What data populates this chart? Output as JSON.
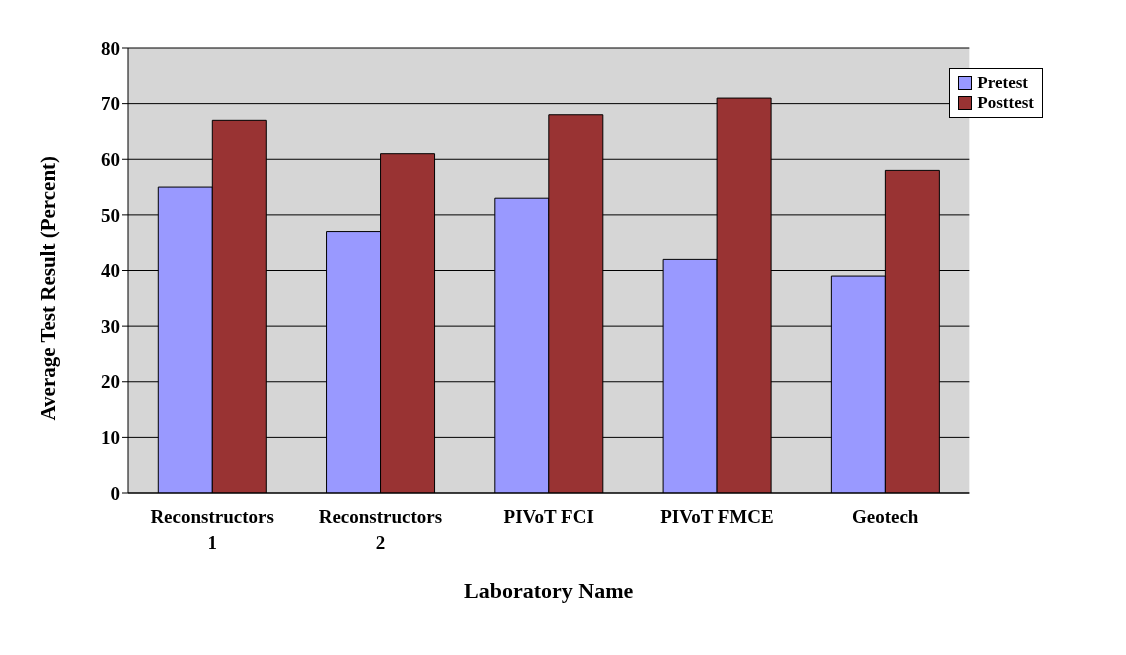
{
  "chart_data": {
    "type": "bar",
    "xlabel": "Laboratory Name",
    "ylabel": "Average Test Result (Percent)",
    "categories": [
      "Reconstructors 1",
      "Reconstructors 2",
      "PIVoT FCI",
      "PIVoT FMCE",
      "Geotech"
    ],
    "series": [
      {
        "name": "Pretest",
        "color": "#9999ff",
        "values": [
          55,
          47,
          53,
          42,
          39
        ]
      },
      {
        "name": "Posttest",
        "color": "#993333",
        "values": [
          67,
          61,
          68,
          71,
          58
        ]
      }
    ],
    "ylim": [
      0,
      80
    ],
    "yticks": [
      0,
      10,
      20,
      30,
      40,
      50,
      60,
      70,
      80
    ],
    "grid": "y",
    "legend": "top right"
  }
}
